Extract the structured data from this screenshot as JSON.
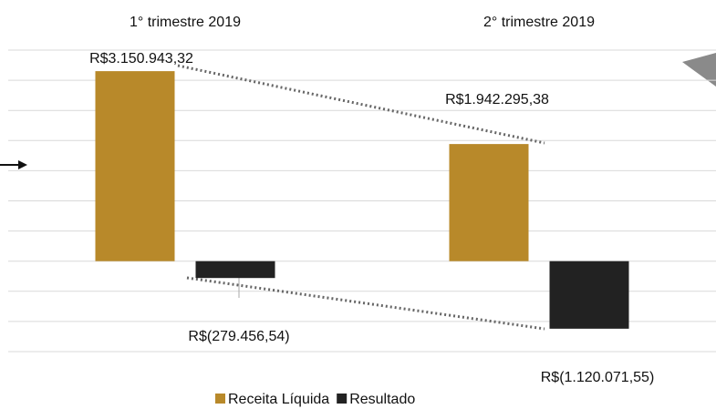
{
  "chart_data": {
    "type": "bar",
    "categories": [
      "1° trimestre 2019",
      "2° trimestre 2019"
    ],
    "series": [
      {
        "name": "Receita Líquida",
        "color": "#b8892a",
        "values": [
          3150943.32,
          1942295.38
        ],
        "value_labels": [
          "R$3.150.943,32",
          "R$1.942.295,38"
        ]
      },
      {
        "name": "Resultado",
        "color": "#222222",
        "values": [
          -279456.54,
          -1120071.55
        ],
        "value_labels": [
          "R$(279.456,54)",
          "R$(1.120.071,55)"
        ]
      }
    ],
    "ylim": [
      -1500000,
      3500000
    ],
    "yticks": [
      -1500000,
      -1000000,
      -500000,
      0,
      500000,
      1000000,
      1500000,
      2000000,
      2500000,
      3000000,
      3500000
    ],
    "grid": true,
    "legend": "bottom"
  }
}
